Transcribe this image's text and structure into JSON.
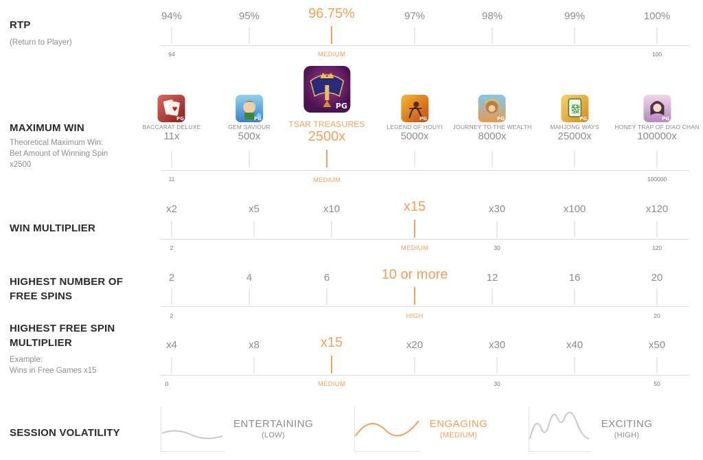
{
  "colors": {
    "highlight": "#f2a15a",
    "muted": "#8c8c8c",
    "line": "#dcdcdc"
  },
  "rtp": {
    "title": "RTP",
    "subtitle": "(Return to Player)",
    "values": [
      "94%",
      "95%",
      "96.75%",
      "97%",
      "98%",
      "99%",
      "100%"
    ],
    "highlight_index": 2,
    "range_min": "94",
    "range_max": "100",
    "level": "MEDIUM"
  },
  "max_win": {
    "title": "MAXIMUM WIN",
    "subtitle_lines": [
      "Theoretical Maximum Win:",
      "Bet Amount of Winning Spin",
      "x2500"
    ],
    "games": [
      {
        "name": "BACCARAT DELUXE",
        "value": "11x",
        "icon": "baccarat-deluxe-icon",
        "pg": "PG"
      },
      {
        "name": "GEM SAVIOUR",
        "value": "500x",
        "icon": "gem-saviour-icon",
        "pg": "PG"
      },
      {
        "name": "TSAR TREASURES",
        "value": "2500x",
        "icon": "tsar-treasures-icon",
        "pg": "PG"
      },
      {
        "name": "LEGEND OF HOUYI",
        "value": "5000x",
        "icon": "legend-of-houyi-icon",
        "pg": "PG"
      },
      {
        "name": "JOURNEY TO THE WEALTH",
        "value": "8000x",
        "icon": "journey-to-the-wealth-icon",
        "pg": "PG"
      },
      {
        "name": "MAHJONG WAYS",
        "value": "25000x",
        "icon": "mahjong-ways-icon",
        "pg": "PG"
      },
      {
        "name": "HONEY TRAP OF DIAO CHAN",
        "value": "100000x",
        "icon": "honey-trap-icon",
        "pg": "PG"
      }
    ],
    "highlight_index": 2,
    "range_min": "11",
    "range_max": "100000",
    "level": "MEDIUM"
  },
  "win_multiplier": {
    "title": "WIN MULTIPLIER",
    "values": [
      "x2",
      "x5",
      "x10",
      "x15",
      "x30",
      "x100",
      "x120"
    ],
    "highlight_index": 3,
    "range_min": "2",
    "range_mid": "30",
    "range_max": "120",
    "level": "MEDIUM"
  },
  "free_spins": {
    "title_lines": [
      "HIGHEST NUMBER OF",
      "FREE SPINS"
    ],
    "values": [
      "2",
      "4",
      "6",
      "10 or more",
      "12",
      "16",
      "20"
    ],
    "highlight_index": 3,
    "range_min": "2",
    "range_max": "20",
    "level": "HIGH"
  },
  "free_spin_multiplier": {
    "title_lines": [
      "HIGHEST FREE SPIN",
      "MULTIPLIER"
    ],
    "subtitle_lines": [
      "Example:",
      "Wins in Free Games x15"
    ],
    "values": [
      "x4",
      "x8",
      "x15",
      "x20",
      "x30",
      "x40",
      "x50"
    ],
    "highlight_index": 2,
    "range_min": "0",
    "range_mid": "30",
    "range_max": "50",
    "level": "MEDIUM"
  },
  "volatility": {
    "title": "SESSION VOLATILITY",
    "options": [
      {
        "label": "ENTERTAINING",
        "sub": "(LOW)"
      },
      {
        "label": "ENGAGING",
        "sub": "(MEDIUM)"
      },
      {
        "label": "EXCITING",
        "sub": "(HIGH)"
      }
    ],
    "selected_index": 1
  }
}
